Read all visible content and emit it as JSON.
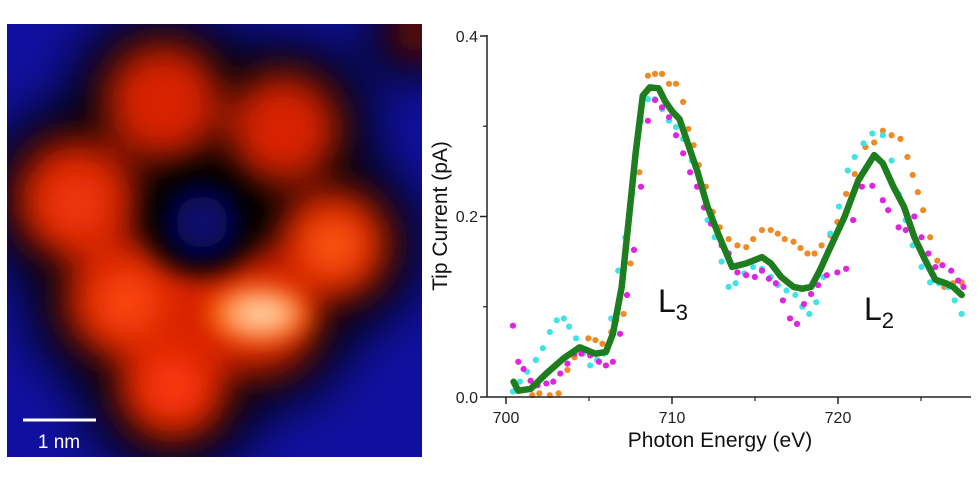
{
  "image_panel": {
    "scale_bar_label": "1 nm",
    "colors": {
      "background": "#1010a0",
      "halo": "#000000",
      "lobe": "#e02a05",
      "bright": "#ffd9b0"
    }
  },
  "chart_data": {
    "type": "scatter",
    "xlabel": "Photon Energy (eV)",
    "ylabel": "Tip Current (pA)",
    "xlim": [
      698.9,
      727.8
    ],
    "ylim": [
      0.0,
      0.4
    ],
    "x_ticks": [
      700,
      710,
      720
    ],
    "x_tick_labels": [
      "700",
      "710",
      "720"
    ],
    "x_minor_ticks": [
      705,
      715,
      725
    ],
    "y_ticks": [
      0.0,
      0.2,
      0.4
    ],
    "y_tick_labels": [
      "0.0",
      "0.2",
      "0.4"
    ],
    "y_minor_ticks": [
      0.1,
      0.3
    ],
    "grid": false,
    "annotations": [
      {
        "text": "L",
        "sub": "3",
        "x": 709.5,
        "y": 0.1
      },
      {
        "text": "L",
        "sub": "2",
        "x": 722.0,
        "y": 0.09
      }
    ],
    "series": [
      {
        "kind": "scatter",
        "color": "#f08a24",
        "points": [
          [
            701.58,
            0.002
          ],
          [
            702.01,
            0.004
          ],
          [
            702.64,
            0.002
          ],
          [
            703.17,
            0.004
          ],
          [
            703.7,
            0.03
          ],
          [
            704.12,
            0.044
          ],
          [
            704.54,
            0.055
          ],
          [
            704.96,
            0.065
          ],
          [
            705.39,
            0.063
          ],
          [
            705.81,
            0.059
          ],
          [
            706.34,
            0.072
          ],
          [
            706.65,
            0.085
          ],
          [
            707.08,
            0.092
          ],
          [
            707.5,
            0.148
          ],
          [
            708.03,
            0.249
          ],
          [
            708.55,
            0.356
          ],
          [
            708.98,
            0.358
          ],
          [
            709.4,
            0.358
          ],
          [
            709.82,
            0.347
          ],
          [
            710.24,
            0.347
          ],
          [
            710.67,
            0.327
          ],
          [
            710.98,
            0.297
          ],
          [
            711.3,
            0.279
          ],
          [
            711.62,
            0.257
          ],
          [
            712.04,
            0.233
          ],
          [
            712.46,
            0.205
          ],
          [
            712.88,
            0.188
          ],
          [
            713.41,
            0.175
          ],
          [
            713.94,
            0.168
          ],
          [
            714.47,
            0.166
          ],
          [
            714.89,
            0.175
          ],
          [
            715.42,
            0.185
          ],
          [
            715.95,
            0.185
          ],
          [
            716.37,
            0.181
          ],
          [
            716.79,
            0.175
          ],
          [
            717.32,
            0.172
          ],
          [
            717.74,
            0.165
          ],
          [
            718.16,
            0.159
          ],
          [
            718.59,
            0.159
          ],
          [
            719.01,
            0.168
          ],
          [
            719.54,
            0.179
          ],
          [
            719.96,
            0.194
          ],
          [
            720.49,
            0.225
          ],
          [
            721.01,
            0.247
          ],
          [
            721.65,
            0.277
          ],
          [
            722.18,
            0.282
          ],
          [
            722.7,
            0.295
          ],
          [
            723.23,
            0.29
          ],
          [
            723.76,
            0.286
          ],
          [
            724.18,
            0.266
          ],
          [
            724.5,
            0.246
          ],
          [
            724.81,
            0.227
          ],
          [
            725.13,
            0.207
          ],
          [
            725.55,
            0.177
          ],
          [
            725.98,
            0.151
          ],
          [
            726.4,
            0.122
          ],
          [
            726.93,
            0.126
          ],
          [
            727.45,
            0.127
          ]
        ]
      },
      {
        "kind": "scatter",
        "color": "#40e4e4",
        "points": [
          [
            700.42,
            0.006
          ],
          [
            700.84,
            0.017
          ],
          [
            701.27,
            0.028
          ],
          [
            701.8,
            0.041
          ],
          [
            702.22,
            0.054
          ],
          [
            702.64,
            0.072
          ],
          [
            703.06,
            0.085
          ],
          [
            703.48,
            0.087
          ],
          [
            703.8,
            0.078
          ],
          [
            704.22,
            0.065
          ],
          [
            704.65,
            0.048
          ],
          [
            705.07,
            0.035
          ],
          [
            705.49,
            0.041
          ],
          [
            705.91,
            0.048
          ],
          [
            706.34,
            0.087
          ],
          [
            706.76,
            0.14
          ],
          [
            707.18,
            0.177
          ],
          [
            707.6,
            0.225
          ],
          [
            708.13,
            0.306
          ],
          [
            708.55,
            0.33
          ],
          [
            708.98,
            0.33
          ],
          [
            709.4,
            0.319
          ],
          [
            709.82,
            0.306
          ],
          [
            710.24,
            0.299
          ],
          [
            710.67,
            0.286
          ],
          [
            711.19,
            0.262
          ],
          [
            711.72,
            0.233
          ],
          [
            712.14,
            0.196
          ],
          [
            712.57,
            0.177
          ],
          [
            712.99,
            0.15
          ],
          [
            713.41,
            0.122
          ],
          [
            713.83,
            0.126
          ],
          [
            714.36,
            0.137
          ],
          [
            714.89,
            0.144
          ],
          [
            715.42,
            0.142
          ],
          [
            715.95,
            0.133
          ],
          [
            716.37,
            0.124
          ],
          [
            716.9,
            0.118
          ],
          [
            717.43,
            0.113
          ],
          [
            717.85,
            0.1
          ],
          [
            718.27,
            0.092
          ],
          [
            718.69,
            0.105
          ],
          [
            719.12,
            0.133
          ],
          [
            719.54,
            0.181
          ],
          [
            720.06,
            0.211
          ],
          [
            720.59,
            0.251
          ],
          [
            721.01,
            0.266
          ],
          [
            721.54,
            0.281
          ],
          [
            722.07,
            0.292
          ],
          [
            722.7,
            0.29
          ],
          [
            723.23,
            0.262
          ],
          [
            723.65,
            0.225
          ],
          [
            724.08,
            0.196
          ],
          [
            724.5,
            0.168
          ],
          [
            725.03,
            0.144
          ],
          [
            725.55,
            0.127
          ],
          [
            726.08,
            0.126
          ],
          [
            726.61,
            0.122
          ],
          [
            727.03,
            0.107
          ],
          [
            727.45,
            0.092
          ]
        ]
      },
      {
        "kind": "scatter",
        "color": "#e024e0",
        "points": [
          [
            700.42,
            0.079
          ],
          [
            700.74,
            0.039
          ],
          [
            701.06,
            0.031
          ],
          [
            701.48,
            0.018
          ],
          [
            701.9,
            0.013
          ],
          [
            702.43,
            0.015
          ],
          [
            702.85,
            0.017
          ],
          [
            703.27,
            0.026
          ],
          [
            703.7,
            0.037
          ],
          [
            704.12,
            0.048
          ],
          [
            704.54,
            0.048
          ],
          [
            705.07,
            0.046
          ],
          [
            705.6,
            0.039
          ],
          [
            706.02,
            0.035
          ],
          [
            706.44,
            0.039
          ],
          [
            706.87,
            0.07
          ],
          [
            707.29,
            0.113
          ],
          [
            707.71,
            0.163
          ],
          [
            708.13,
            0.233
          ],
          [
            708.55,
            0.306
          ],
          [
            708.98,
            0.329
          ],
          [
            709.4,
            0.321
          ],
          [
            709.82,
            0.31
          ],
          [
            710.24,
            0.29
          ],
          [
            710.67,
            0.27
          ],
          [
            711.09,
            0.249
          ],
          [
            711.51,
            0.233
          ],
          [
            711.93,
            0.21
          ],
          [
            712.35,
            0.192
          ],
          [
            712.99,
            0.168
          ],
          [
            713.41,
            0.159
          ],
          [
            713.94,
            0.138
          ],
          [
            714.47,
            0.135
          ],
          [
            714.99,
            0.133
          ],
          [
            715.42,
            0.14
          ],
          [
            715.84,
            0.131
          ],
          [
            716.26,
            0.126
          ],
          [
            716.68,
            0.107
          ],
          [
            717.11,
            0.087
          ],
          [
            717.53,
            0.081
          ],
          [
            717.95,
            0.103
          ],
          [
            718.38,
            0.114
          ],
          [
            718.8,
            0.124
          ],
          [
            719.32,
            0.135
          ],
          [
            719.96,
            0.138
          ],
          [
            720.49,
            0.142
          ],
          [
            720.91,
            0.196
          ],
          [
            721.44,
            0.233
          ],
          [
            722.07,
            0.234
          ],
          [
            722.7,
            0.218
          ],
          [
            723.02,
            0.207
          ],
          [
            723.65,
            0.188
          ],
          [
            724.08,
            0.185
          ],
          [
            724.6,
            0.2
          ],
          [
            725.03,
            0.177
          ],
          [
            725.45,
            0.159
          ],
          [
            725.87,
            0.144
          ],
          [
            726.29,
            0.146
          ],
          [
            726.82,
            0.14
          ],
          [
            727.24,
            0.129
          ],
          [
            727.56,
            0.122
          ]
        ]
      },
      {
        "kind": "line",
        "color": "#1e7d1e",
        "points": [
          [
            700.46,
            0.017
          ],
          [
            700.74,
            0.007
          ],
          [
            701.48,
            0.009
          ],
          [
            702.43,
            0.026
          ],
          [
            703.48,
            0.043
          ],
          [
            704.43,
            0.055
          ],
          [
            704.86,
            0.052
          ],
          [
            705.39,
            0.048
          ],
          [
            706.02,
            0.05
          ],
          [
            706.44,
            0.07
          ],
          [
            706.97,
            0.122
          ],
          [
            707.39,
            0.196
          ],
          [
            707.81,
            0.27
          ],
          [
            708.24,
            0.334
          ],
          [
            708.66,
            0.343
          ],
          [
            709.19,
            0.342
          ],
          [
            709.61,
            0.327
          ],
          [
            710.03,
            0.316
          ],
          [
            710.45,
            0.308
          ],
          [
            710.88,
            0.285
          ],
          [
            711.51,
            0.251
          ],
          [
            712.14,
            0.211
          ],
          [
            712.78,
            0.181
          ],
          [
            713.62,
            0.144
          ],
          [
            714.47,
            0.148
          ],
          [
            715.42,
            0.155
          ],
          [
            715.95,
            0.148
          ],
          [
            716.58,
            0.133
          ],
          [
            717.32,
            0.122
          ],
          [
            717.85,
            0.12
          ],
          [
            718.38,
            0.122
          ],
          [
            718.9,
            0.14
          ],
          [
            719.54,
            0.166
          ],
          [
            720.38,
            0.199
          ],
          [
            721.22,
            0.24
          ],
          [
            722.18,
            0.268
          ],
          [
            722.7,
            0.259
          ],
          [
            723.34,
            0.233
          ],
          [
            723.97,
            0.211
          ],
          [
            724.6,
            0.177
          ],
          [
            725.24,
            0.152
          ],
          [
            725.87,
            0.13
          ],
          [
            726.5,
            0.126
          ],
          [
            726.93,
            0.122
          ],
          [
            727.45,
            0.113
          ]
        ]
      }
    ]
  }
}
